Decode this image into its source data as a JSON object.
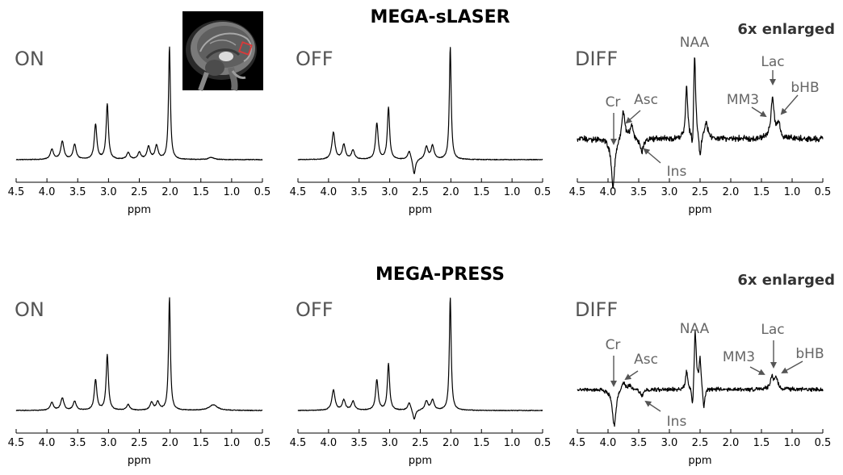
{
  "sections": [
    {
      "title": "MEGA-sLASER",
      "enlarged_note": "6x enlarged"
    },
    {
      "title": "MEGA-PRESS",
      "enlarged_note": "6x enlarged"
    }
  ],
  "colors": {
    "spectrum": "#000000",
    "annotation": "#666666",
    "arrow": "#555555",
    "roi_box": "#d93a3a",
    "panel_label": "#555555"
  },
  "inset_image": {
    "description_icon": "brain-mri-sagittal-icon",
    "roi_marker": "red square voxel"
  },
  "chart_data": [
    {
      "type": "line",
      "panel_label": "ON",
      "section": "MEGA-sLASER",
      "xlabel": "ppm",
      "xlim": [
        4.5,
        0.5
      ],
      "x_reversed": true,
      "xticks": [
        "4.5",
        "4.0",
        "3.5",
        "3.0",
        "2.5",
        "2.0",
        "1.5",
        "1.0",
        "0.5"
      ],
      "baseline": 0.0,
      "peaks": [
        {
          "ppm": 3.92,
          "height": 0.09,
          "width": 0.03
        },
        {
          "ppm": 3.75,
          "height": 0.16,
          "width": 0.03
        },
        {
          "ppm": 3.55,
          "height": 0.13,
          "width": 0.03
        },
        {
          "ppm": 3.21,
          "height": 0.31,
          "width": 0.025
        },
        {
          "ppm": 3.02,
          "height": 0.49,
          "width": 0.022
        },
        {
          "ppm": 2.68,
          "height": 0.06,
          "width": 0.03
        },
        {
          "ppm": 2.5,
          "height": 0.06,
          "width": 0.03
        },
        {
          "ppm": 2.35,
          "height": 0.11,
          "width": 0.03
        },
        {
          "ppm": 2.22,
          "height": 0.12,
          "width": 0.03
        },
        {
          "ppm": 2.01,
          "height": 1.0,
          "width": 0.018
        },
        {
          "ppm": 1.33,
          "height": 0.02,
          "width": 0.05
        }
      ]
    },
    {
      "type": "line",
      "panel_label": "OFF",
      "section": "MEGA-sLASER",
      "xlabel": "ppm",
      "xlim": [
        4.5,
        0.5
      ],
      "x_reversed": true,
      "xticks": [
        "4.5",
        "4.0",
        "3.5",
        "3.0",
        "2.5",
        "2.0",
        "1.5",
        "1.0",
        "0.5"
      ],
      "baseline": 0.0,
      "peaks": [
        {
          "ppm": 3.92,
          "height": 0.24,
          "width": 0.03
        },
        {
          "ppm": 3.75,
          "height": 0.13,
          "width": 0.03
        },
        {
          "ppm": 3.6,
          "height": 0.08,
          "width": 0.03
        },
        {
          "ppm": 3.21,
          "height": 0.32,
          "width": 0.025
        },
        {
          "ppm": 3.02,
          "height": 0.46,
          "width": 0.022
        },
        {
          "ppm": 2.68,
          "height": 0.08,
          "width": 0.03
        },
        {
          "ppm": 2.6,
          "height": -0.14,
          "width": 0.025
        },
        {
          "ppm": 2.4,
          "height": 0.11,
          "width": 0.03
        },
        {
          "ppm": 2.3,
          "height": 0.12,
          "width": 0.03
        },
        {
          "ppm": 2.01,
          "height": 1.0,
          "width": 0.018
        }
      ]
    },
    {
      "type": "line",
      "panel_label": "DIFF",
      "section": "MEGA-sLASER",
      "xlabel": "ppm",
      "xlim": [
        4.5,
        0.5
      ],
      "x_reversed": true,
      "xticks": [
        "4.5",
        "4.0",
        "3.5",
        "3.0",
        "2.5",
        "2.0",
        "1.5",
        "1.0",
        "0.5"
      ],
      "baseline": 0.0,
      "noise": 0.05,
      "peaks": [
        {
          "ppm": 3.92,
          "height": -0.55,
          "width": 0.035
        },
        {
          "ppm": 3.75,
          "height": 0.32,
          "width": 0.03
        },
        {
          "ppm": 3.62,
          "height": 0.15,
          "width": 0.03
        },
        {
          "ppm": 3.45,
          "height": -0.15,
          "width": 0.03
        },
        {
          "ppm": 2.72,
          "height": 0.58,
          "width": 0.02
        },
        {
          "ppm": 2.62,
          "height": -0.34,
          "width": 0.02
        },
        {
          "ppm": 2.59,
          "height": 1.0,
          "width": 0.022
        },
        {
          "ppm": 2.5,
          "height": -0.25,
          "width": 0.02
        },
        {
          "ppm": 2.4,
          "height": 0.18,
          "width": 0.03
        },
        {
          "ppm": 1.32,
          "height": 0.45,
          "width": 0.03
        },
        {
          "ppm": 1.22,
          "height": 0.17,
          "width": 0.03
        }
      ],
      "annotations": [
        {
          "label": "NAA",
          "ppm": 2.61
        },
        {
          "label": "Cr",
          "ppm": 3.92
        },
        {
          "label": "Asc",
          "ppm": 3.75
        },
        {
          "label": "Ins",
          "ppm": 3.45
        },
        {
          "label": "MM3",
          "ppm": 1.42
        },
        {
          "label": "Lac",
          "ppm": 1.33
        },
        {
          "label": "bHB",
          "ppm": 1.2
        }
      ]
    },
    {
      "type": "line",
      "panel_label": "ON",
      "section": "MEGA-PRESS",
      "xlabel": "ppm",
      "xlim": [
        4.5,
        0.5
      ],
      "x_reversed": true,
      "xticks": [
        "4.5",
        "4.0",
        "3.5",
        "3.0",
        "2.5",
        "2.0",
        "1.5",
        "1.0",
        "0.5"
      ],
      "baseline": 0.0,
      "peaks": [
        {
          "ppm": 3.92,
          "height": 0.07,
          "width": 0.03
        },
        {
          "ppm": 3.75,
          "height": 0.11,
          "width": 0.03
        },
        {
          "ppm": 3.55,
          "height": 0.08,
          "width": 0.03
        },
        {
          "ppm": 3.21,
          "height": 0.27,
          "width": 0.025
        },
        {
          "ppm": 3.02,
          "height": 0.49,
          "width": 0.022
        },
        {
          "ppm": 2.68,
          "height": 0.05,
          "width": 0.03
        },
        {
          "ppm": 2.3,
          "height": 0.07,
          "width": 0.03
        },
        {
          "ppm": 2.2,
          "height": 0.07,
          "width": 0.03
        },
        {
          "ppm": 2.01,
          "height": 1.0,
          "width": 0.018
        },
        {
          "ppm": 1.3,
          "height": 0.05,
          "width": 0.08
        }
      ]
    },
    {
      "type": "line",
      "panel_label": "OFF",
      "section": "MEGA-PRESS",
      "xlabel": "ppm",
      "xlim": [
        4.5,
        0.5
      ],
      "x_reversed": true,
      "xticks": [
        "4.5",
        "4.0",
        "3.5",
        "3.0",
        "2.5",
        "2.0",
        "1.5",
        "1.0",
        "0.5"
      ],
      "baseline": 0.0,
      "peaks": [
        {
          "ppm": 3.92,
          "height": 0.18,
          "width": 0.03
        },
        {
          "ppm": 3.75,
          "height": 0.09,
          "width": 0.03
        },
        {
          "ppm": 3.6,
          "height": 0.08,
          "width": 0.03
        },
        {
          "ppm": 3.21,
          "height": 0.27,
          "width": 0.025
        },
        {
          "ppm": 3.02,
          "height": 0.41,
          "width": 0.022
        },
        {
          "ppm": 2.68,
          "height": 0.07,
          "width": 0.03
        },
        {
          "ppm": 2.6,
          "height": -0.09,
          "width": 0.025
        },
        {
          "ppm": 2.4,
          "height": 0.08,
          "width": 0.03
        },
        {
          "ppm": 2.3,
          "height": 0.09,
          "width": 0.03
        },
        {
          "ppm": 2.01,
          "height": 1.0,
          "width": 0.018
        }
      ]
    },
    {
      "type": "line",
      "panel_label": "DIFF",
      "section": "MEGA-PRESS",
      "xlabel": "ppm",
      "xlim": [
        4.5,
        0.5
      ],
      "x_reversed": true,
      "xticks": [
        "4.5",
        "4.0",
        "3.5",
        "3.0",
        "2.5",
        "2.0",
        "1.5",
        "1.0",
        "0.5"
      ],
      "baseline": 0.0,
      "noise": 0.05,
      "peaks": [
        {
          "ppm": 3.9,
          "height": -0.6,
          "width": 0.035
        },
        {
          "ppm": 3.75,
          "height": 0.15,
          "width": 0.03
        },
        {
          "ppm": 3.65,
          "height": 0.08,
          "width": 0.03
        },
        {
          "ppm": 3.45,
          "height": -0.12,
          "width": 0.03
        },
        {
          "ppm": 2.72,
          "height": 0.3,
          "width": 0.02
        },
        {
          "ppm": 2.62,
          "height": -0.45,
          "width": 0.02
        },
        {
          "ppm": 2.58,
          "height": 1.0,
          "width": 0.022
        },
        {
          "ppm": 2.5,
          "height": 0.5,
          "width": 0.02
        },
        {
          "ppm": 2.44,
          "height": -0.35,
          "width": 0.02
        },
        {
          "ppm": 1.33,
          "height": 0.2,
          "width": 0.03
        },
        {
          "ppm": 1.26,
          "height": 0.18,
          "width": 0.03
        }
      ],
      "annotations": [
        {
          "label": "NAA",
          "ppm": 2.58
        },
        {
          "label": "Cr",
          "ppm": 3.9
        },
        {
          "label": "Asc",
          "ppm": 3.75
        },
        {
          "label": "Ins",
          "ppm": 3.45
        },
        {
          "label": "MM3",
          "ppm": 1.4
        },
        {
          "label": "Lac",
          "ppm": 1.3
        },
        {
          "label": "bHB",
          "ppm": 1.2
        }
      ]
    }
  ]
}
